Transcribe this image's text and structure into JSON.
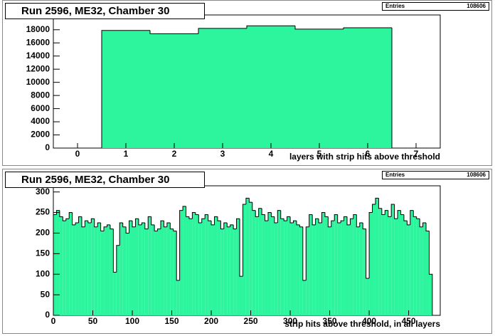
{
  "chart_data": [
    {
      "type": "histogram",
      "title": "Run 2596, ME32, Chamber 30",
      "x_label": "layers with strip hits above threshold",
      "stats": {
        "label": "Entries",
        "value": 108606
      },
      "color": "#2cf59e",
      "bins": [
        -0.5,
        0.5,
        1.5,
        2.5,
        3.5,
        4.5,
        5.5,
        6.5,
        7.5
      ],
      "values": [
        0,
        17900,
        17400,
        18200,
        18600,
        18100,
        18300,
        0
      ],
      "xlim": [
        -0.5,
        7.5
      ],
      "ylim": [
        0,
        20250
      ],
      "xticks": [
        0,
        1,
        2,
        3,
        4,
        5,
        6,
        7
      ],
      "yticks": [
        0,
        2000,
        4000,
        6000,
        8000,
        10000,
        12000,
        14000,
        16000,
        18000
      ]
    },
    {
      "type": "histogram",
      "title": "Run 2596, ME32, Chamber 30",
      "x_label": "strip hits above threshold, in all layers",
      "stats": {
        "label": "Entries",
        "value": 108606
      },
      "color": "#2cf59e",
      "bins": [
        0,
        4,
        8,
        12,
        16,
        20,
        24,
        28,
        32,
        36,
        40,
        44,
        48,
        52,
        56,
        60,
        64,
        68,
        72,
        76,
        80,
        84,
        88,
        92,
        96,
        100,
        104,
        108,
        112,
        116,
        120,
        124,
        128,
        132,
        136,
        140,
        144,
        148,
        152,
        156,
        160,
        164,
        168,
        172,
        176,
        180,
        184,
        188,
        192,
        196,
        200,
        204,
        208,
        212,
        216,
        220,
        224,
        228,
        232,
        236,
        240,
        244,
        248,
        252,
        256,
        260,
        264,
        268,
        272,
        276,
        280,
        284,
        288,
        292,
        296,
        300,
        304,
        308,
        312,
        316,
        320,
        324,
        328,
        332,
        336,
        340,
        344,
        348,
        352,
        356,
        360,
        364,
        368,
        372,
        376,
        380,
        384,
        388,
        392,
        396,
        400,
        404,
        408,
        412,
        416,
        420,
        424,
        428,
        432,
        436,
        440,
        444,
        448,
        452,
        456,
        460,
        464,
        468,
        472,
        476,
        480
      ],
      "values": [
        245,
        255,
        240,
        230,
        235,
        250,
        220,
        225,
        240,
        215,
        230,
        225,
        235,
        215,
        225,
        205,
        215,
        220,
        210,
        105,
        170,
        225,
        215,
        200,
        230,
        215,
        235,
        220,
        225,
        210,
        240,
        220,
        205,
        210,
        230,
        215,
        225,
        210,
        205,
        85,
        255,
        265,
        240,
        235,
        250,
        245,
        225,
        235,
        245,
        230,
        220,
        240,
        230,
        210,
        225,
        215,
        220,
        210,
        235,
        95,
        270,
        285,
        275,
        255,
        240,
        260,
        245,
        230,
        250,
        240,
        225,
        255,
        235,
        230,
        240,
        225,
        230,
        220,
        215,
        85,
        215,
        245,
        220,
        235,
        225,
        250,
        240,
        215,
        230,
        245,
        225,
        230,
        240,
        220,
        235,
        245,
        215,
        225,
        210,
        90,
        250,
        270,
        285,
        260,
        245,
        255,
        240,
        270,
        235,
        255,
        245,
        230,
        220,
        255,
        240,
        235,
        215,
        225,
        205,
        100
      ],
      "xlim": [
        0,
        490
      ],
      "ylim": [
        0,
        315
      ],
      "xticks": [
        0,
        50,
        100,
        150,
        200,
        250,
        300,
        350,
        400,
        450
      ],
      "yticks": [
        0,
        50,
        100,
        150,
        200,
        250,
        300
      ]
    }
  ]
}
